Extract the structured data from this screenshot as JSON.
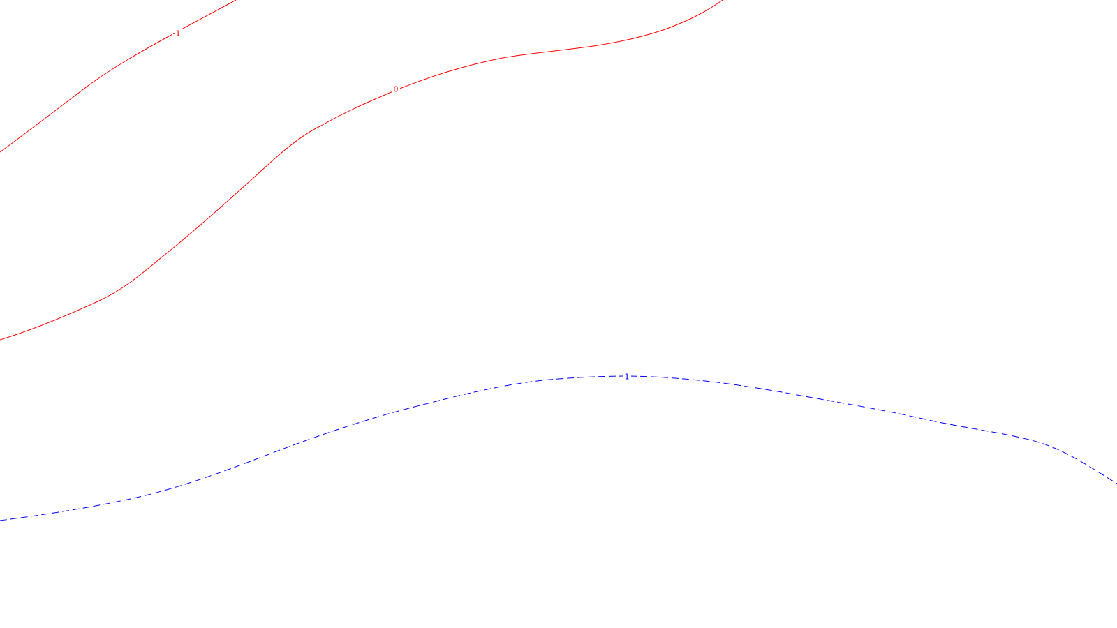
{
  "map": {
    "background": "#ffffff",
    "contours": [
      {
        "id": "contour-minus-1",
        "level_label": "-1",
        "color": "#ff0000",
        "style": "solid"
      },
      {
        "id": "contour-0",
        "level_label": "0",
        "color": "#ff0000",
        "style": "solid"
      },
      {
        "id": "contour-plus-1",
        "level_label": "1",
        "color": "#0000ff",
        "style": "dashed"
      }
    ]
  }
}
